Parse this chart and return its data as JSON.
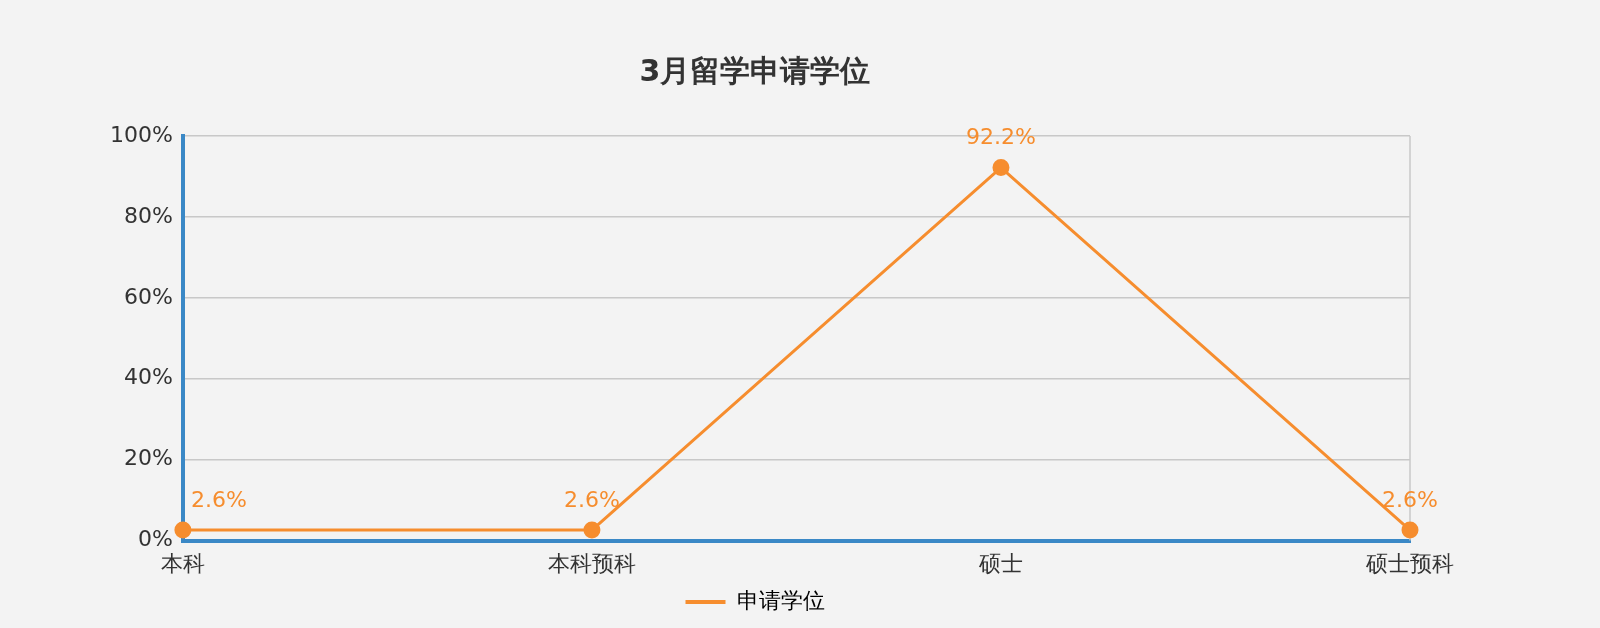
{
  "chart_data": {
    "type": "line",
    "title": "3月留学申请学位",
    "categories": [
      "本科",
      "本科预科",
      "硕士",
      "硕士预科"
    ],
    "series": [
      {
        "name": "申请学位",
        "color": "#f68d2e",
        "values": [
          2.6,
          2.6,
          92.2,
          2.6
        ],
        "value_labels": [
          "2.6%",
          "2.6%",
          "92.2%",
          "2.6%"
        ]
      }
    ],
    "ylim": [
      0,
      100
    ],
    "yticks": [
      {
        "value": 0,
        "label": "0%"
      },
      {
        "value": 20,
        "label": "20%"
      },
      {
        "value": 40,
        "label": "40%"
      },
      {
        "value": 60,
        "label": "60%"
      },
      {
        "value": 80,
        "label": "80%"
      },
      {
        "value": 100,
        "label": "100%"
      }
    ],
    "grid": "y",
    "legend": "bottom",
    "marker": "circle",
    "line_style": "solid"
  }
}
